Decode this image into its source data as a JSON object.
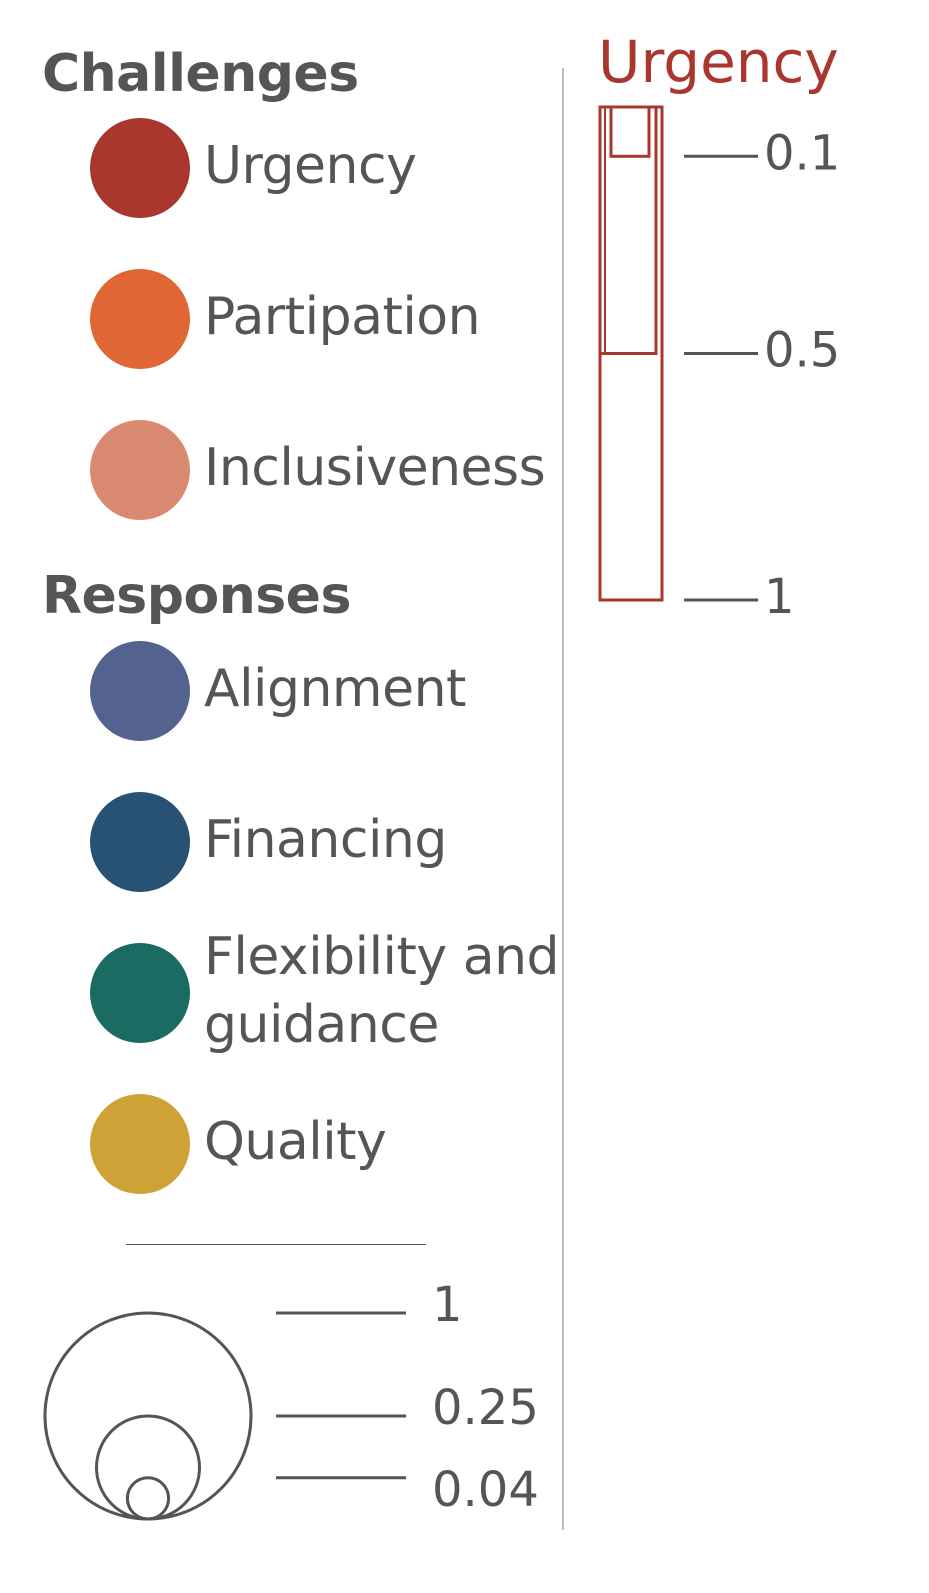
{
  "legend": {
    "challenges_heading": "Challenges",
    "challenges": [
      {
        "label": "Urgency",
        "color": "#A9372D"
      },
      {
        "label": "Partipation",
        "color": "#E06634"
      },
      {
        "label": "Inclusiveness",
        "color": "#D8896F"
      }
    ],
    "responses_heading": "Responses",
    "responses": [
      {
        "label": "Alignment",
        "color": "#53628E"
      },
      {
        "label": "Financing",
        "color": "#285273"
      },
      {
        "label": "Flexibility and",
        "label2": "guidance",
        "color": "#1B6B62"
      },
      {
        "label": "Quality",
        "color": "#CFA237"
      }
    ]
  },
  "chart_data": [
    {
      "type": "bubble-size-legend",
      "values": [
        1,
        0.25,
        0.04
      ],
      "tick_labels": [
        "1",
        "0.25",
        "0.04"
      ],
      "stroke_color": "#555555"
    },
    {
      "type": "bar",
      "title": "Urgency",
      "color": "#A9372D",
      "values": [
        1,
        0.5,
        0.1
      ],
      "tick_labels": [
        "0.1",
        "0.5",
        "1"
      ],
      "ylim": [
        0,
        1
      ]
    }
  ]
}
